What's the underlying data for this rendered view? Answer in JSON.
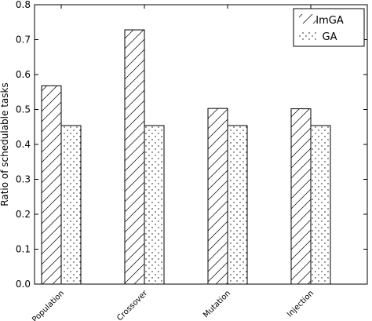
{
  "chart_data": {
    "type": "bar",
    "categories": [
      "Population",
      "Crossover",
      "Mutation",
      "Injection"
    ],
    "series": [
      {
        "name": "ImGA",
        "values": [
          0.568,
          0.728,
          0.503,
          0.502
        ],
        "pattern": "diagonal-hatch"
      },
      {
        "name": "GA",
        "values": [
          0.454,
          0.454,
          0.454,
          0.454
        ],
        "pattern": "dots"
      }
    ],
    "xlabel": "",
    "ylabel": "Ratio of schedulable tasks",
    "ylim": [
      0,
      0.8
    ],
    "yticks": [
      "0.0",
      "0.1",
      "0.2",
      "0.3",
      "0.4",
      "0.5",
      "0.6",
      "0.7",
      "0.8"
    ],
    "grid": false,
    "legend_position": "top-right"
  }
}
